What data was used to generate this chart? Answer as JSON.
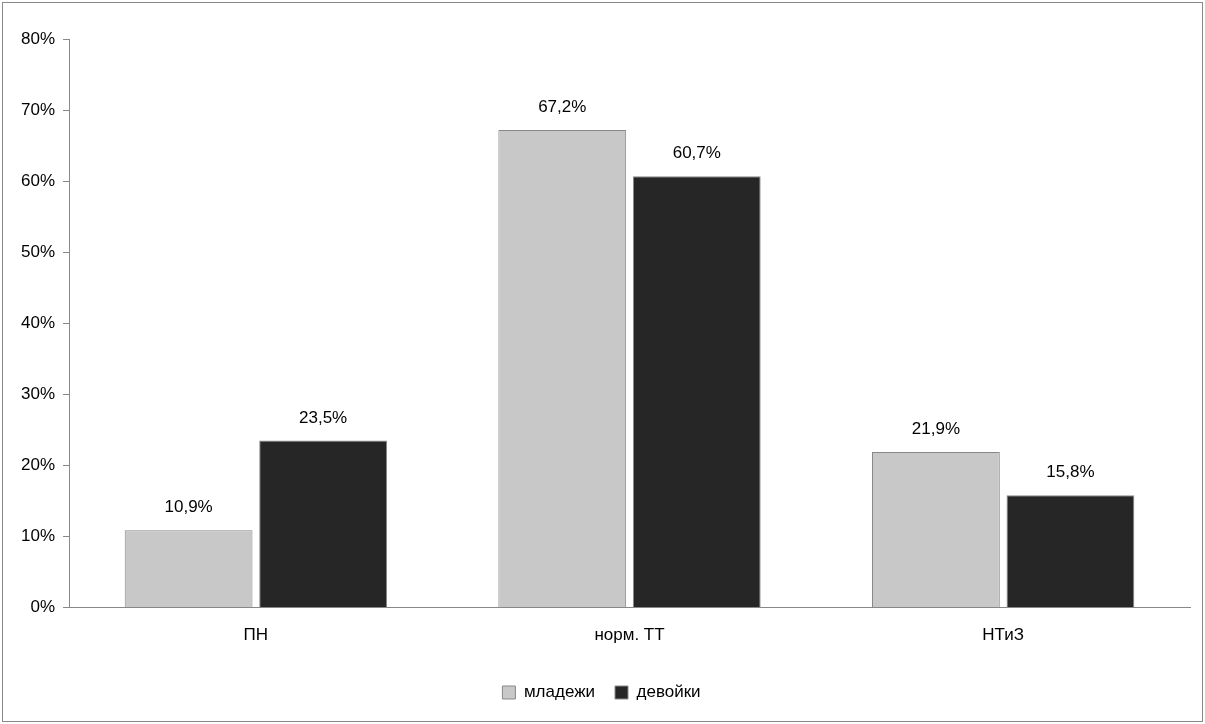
{
  "chart_data": {
    "type": "bar",
    "categories": [
      "ПН",
      "норм. ТТ",
      "НТиЗ"
    ],
    "series": [
      {
        "name": "младежи",
        "color": "#c8c8c8",
        "values": [
          10.9,
          67.2,
          21.9
        ],
        "value_labels": [
          "10,9%",
          "67,2%",
          "21,9%"
        ]
      },
      {
        "name": "девойки",
        "color": "#262626",
        "values": [
          23.5,
          60.7,
          15.8
        ],
        "value_labels": [
          "23,5%",
          "60,7%",
          "15,8%"
        ]
      }
    ],
    "ylim": [
      0,
      80
    ],
    "yticks": [
      {
        "value": 0,
        "label": "0%"
      },
      {
        "value": 10,
        "label": "10%"
      },
      {
        "value": 20,
        "label": "20%"
      },
      {
        "value": 30,
        "label": "30%"
      },
      {
        "value": 40,
        "label": "40%"
      },
      {
        "value": 50,
        "label": "50%"
      },
      {
        "value": 60,
        "label": "60%"
      },
      {
        "value": 70,
        "label": "70%"
      },
      {
        "value": 80,
        "label": "80%"
      }
    ],
    "grid": false,
    "legend": "bottom"
  }
}
